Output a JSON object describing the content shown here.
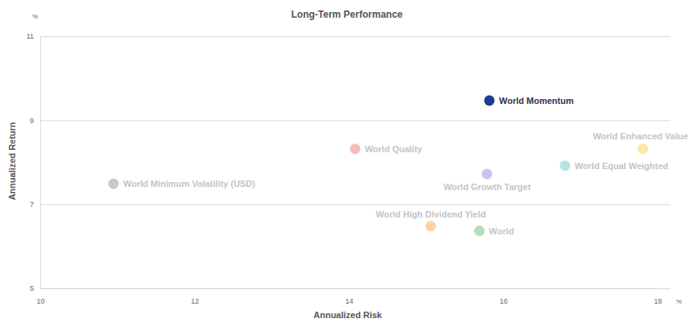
{
  "chart_data": {
    "type": "scatter",
    "title": "Long-Term Performance",
    "x_label": "Annualized Risk",
    "y_label": "Annualized Return",
    "x_unit": "%",
    "y_unit": "%",
    "xlim": [
      10,
      18
    ],
    "xticks": [
      10,
      12,
      14,
      16,
      18
    ],
    "ylim": [
      5,
      11
    ],
    "yticks": [
      5,
      7,
      9,
      11
    ],
    "grid": true,
    "series": [
      {
        "name": "World Momentum",
        "color": "#1c3d8f",
        "x": [
          15.82
        ],
        "values": [
          9.47
        ]
      },
      {
        "name": "World Quality",
        "color": "#f6bcbc",
        "x": [
          14.08
        ],
        "values": [
          8.32
        ]
      },
      {
        "name": "World Enhanced Value",
        "color": "#fde6a6",
        "x": [
          17.81
        ],
        "values": [
          8.32
        ]
      },
      {
        "name": "World Equal Weighted",
        "color": "#b4e3e1",
        "x": [
          16.8
        ],
        "values": [
          7.92
        ]
      },
      {
        "name": "World Growth Target",
        "color": "#c6c6e8",
        "x": [
          15.79
        ],
        "values": [
          7.72
        ]
      },
      {
        "name": "World Minimum Volatility (USD)",
        "color": "#c9c9c9",
        "x": [
          10.95
        ],
        "values": [
          7.49
        ]
      },
      {
        "name": "World High Dividend Yield",
        "color": "#fcd1aa",
        "x": [
          15.06
        ],
        "values": [
          6.48
        ]
      },
      {
        "name": "World",
        "color": "#b7dbbb",
        "x": [
          15.69
        ],
        "values": [
          6.37
        ]
      }
    ]
  }
}
